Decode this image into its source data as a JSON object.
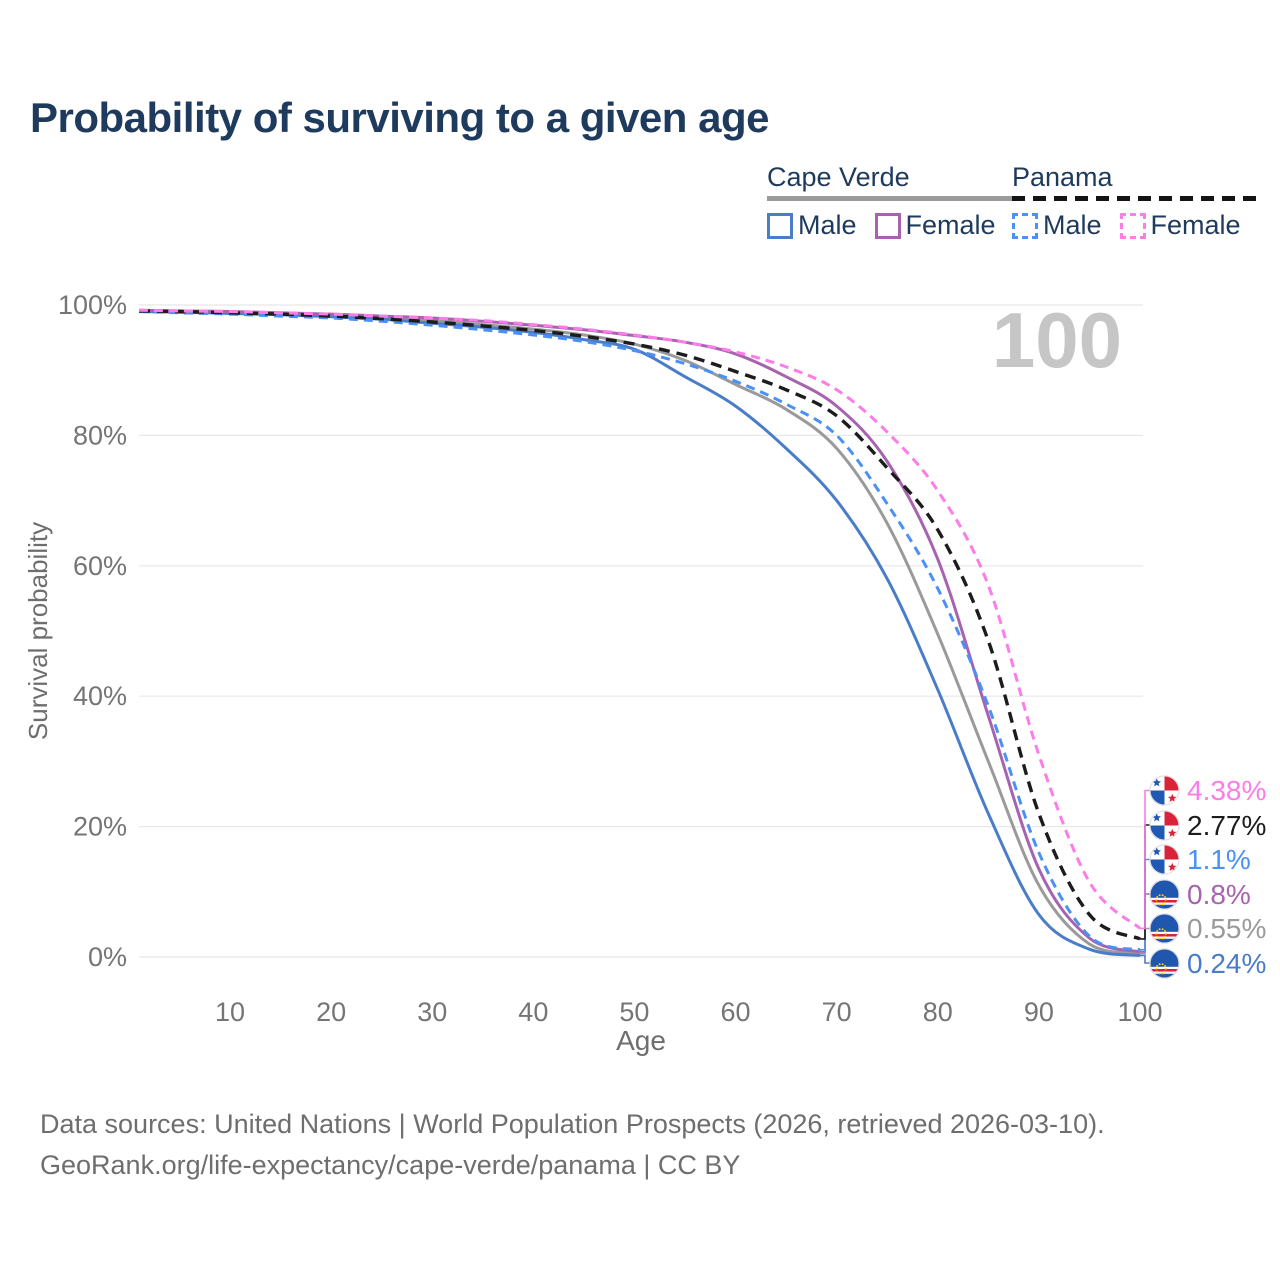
{
  "title": "Probability of surviving to a given age",
  "watermark": "100",
  "legend": {
    "groups": [
      {
        "name": "Cape Verde",
        "line_style": "solid",
        "underline_color": "#9a9a9a",
        "items": [
          {
            "label": "Male",
            "color": "#4a7dc9"
          },
          {
            "label": "Female",
            "color": "#a863b0"
          }
        ]
      },
      {
        "name": "Panama",
        "line_style": "dashed",
        "underline_color": "#141414",
        "items": [
          {
            "label": "Male",
            "color": "#4a90f5"
          },
          {
            "label": "Female",
            "color": "#fc7ce8"
          }
        ]
      }
    ]
  },
  "chart_data": {
    "type": "line",
    "title": "Probability of surviving to a given age",
    "xlabel": "Age",
    "ylabel": "Survival probability",
    "xlim": [
      1,
      100
    ],
    "ylim": [
      0,
      100
    ],
    "grid": "horizontal",
    "x_ticks": [
      10,
      20,
      30,
      40,
      50,
      60,
      70,
      80,
      90,
      100
    ],
    "y_ticks": [
      {
        "value": 0,
        "label": "0%"
      },
      {
        "value": 20,
        "label": "20%"
      },
      {
        "value": 40,
        "label": "40%"
      },
      {
        "value": 60,
        "label": "60%"
      },
      {
        "value": 80,
        "label": "80%"
      },
      {
        "value": 100,
        "label": "100%"
      }
    ],
    "x": [
      1,
      5,
      10,
      15,
      20,
      25,
      30,
      35,
      40,
      45,
      50,
      55,
      60,
      65,
      70,
      75,
      80,
      85,
      90,
      95,
      100
    ],
    "series": [
      {
        "id": "cape-verde-total",
        "name": "Cape Verde",
        "country": "Cape Verde",
        "sex": "Both",
        "color": "#9a9a9a",
        "dash": false,
        "flag": "cape-verde",
        "end_label": "0.55%",
        "values": [
          99.1,
          99.0,
          98.8,
          98.6,
          98.4,
          98.0,
          97.6,
          97.0,
          96.3,
          95.4,
          94.0,
          91.5,
          87.8,
          84.0,
          78.0,
          66.5,
          49.5,
          30.0,
          11.0,
          2.0,
          0.55
        ]
      },
      {
        "id": "cape-verde-male",
        "name": "Cape Verde Male",
        "country": "Cape Verde",
        "sex": "Male",
        "color": "#4a7dc9",
        "dash": false,
        "flag": "cape-verde",
        "end_label": "0.24%",
        "values": [
          99.0,
          98.9,
          98.7,
          98.5,
          98.2,
          97.8,
          97.2,
          96.6,
          95.8,
          94.7,
          93.2,
          89.0,
          84.5,
          78.0,
          70.0,
          58.0,
          41.0,
          22.0,
          6.5,
          1.2,
          0.24
        ]
      },
      {
        "id": "cape-verde-female",
        "name": "Cape Verde Female",
        "country": "Cape Verde",
        "sex": "Female",
        "color": "#a863b0",
        "dash": false,
        "flag": "cape-verde",
        "end_label": "0.8%",
        "values": [
          99.2,
          99.1,
          99.0,
          98.8,
          98.6,
          98.3,
          98.0,
          97.5,
          96.9,
          96.2,
          95.3,
          94.3,
          92.5,
          89.0,
          84.5,
          76.0,
          61.0,
          37.0,
          13.5,
          2.9,
          0.8
        ]
      },
      {
        "id": "panama-male",
        "name": "Panama Male",
        "country": "Panama",
        "sex": "Male",
        "color": "#4a90f5",
        "dash": true,
        "flag": "panama",
        "end_label": "1.1%",
        "values": [
          99.0,
          98.8,
          98.6,
          98.3,
          98.0,
          97.5,
          96.9,
          96.2,
          95.4,
          94.4,
          93.0,
          91.0,
          88.3,
          84.8,
          80.0,
          69.5,
          56.5,
          38.5,
          16.0,
          3.2,
          1.1
        ]
      },
      {
        "id": "panama-total",
        "name": "Panama",
        "country": "Panama",
        "sex": "Both",
        "color": "#1c1c1c",
        "dash": true,
        "flag": "panama",
        "end_label": "2.77%",
        "values": [
          99.1,
          99.0,
          98.8,
          98.6,
          98.3,
          97.9,
          97.4,
          96.8,
          96.1,
          95.2,
          94.0,
          92.3,
          89.8,
          87.0,
          83.0,
          75.0,
          65.5,
          48.5,
          22.0,
          6.5,
          2.77
        ]
      },
      {
        "id": "panama-female",
        "name": "Panama Female",
        "country": "Panama",
        "sex": "Female",
        "color": "#fc7ce8",
        "dash": true,
        "flag": "panama",
        "end_label": "4.38%",
        "values": [
          99.2,
          99.1,
          99.0,
          98.8,
          98.6,
          98.3,
          98.0,
          97.6,
          97.0,
          96.3,
          95.4,
          94.3,
          92.8,
          90.5,
          87.0,
          80.5,
          71.5,
          57.0,
          31.0,
          11.5,
          4.38
        ]
      }
    ]
  },
  "footer": {
    "line1": "Data sources: United Nations | World Population Prospects (2026, retrieved 2026-03-10).",
    "line2": "GeoRank.org/life-expectancy/cape-verde/panama | CC BY"
  }
}
